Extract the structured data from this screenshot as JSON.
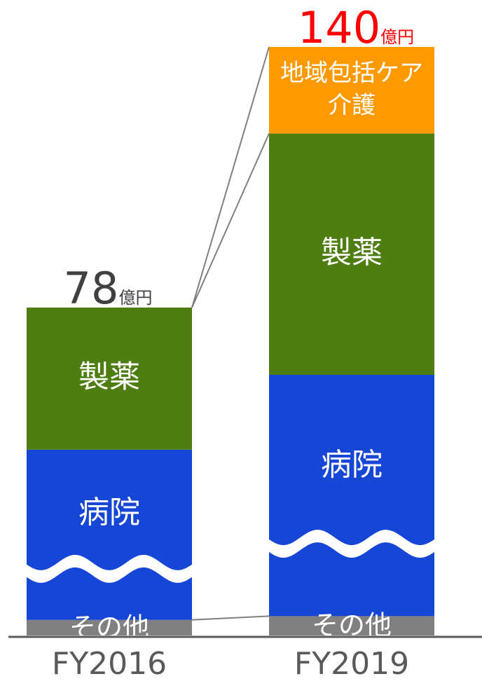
{
  "chart_data": {
    "type": "bar",
    "stacked": true,
    "axis_broken": true,
    "categories": [
      "FY2016",
      "FY2019"
    ],
    "totals": [
      {
        "number": "78",
        "unit": "億円",
        "color": "#404040"
      },
      {
        "number": "140",
        "unit": "億円",
        "color": "#ff0000"
      }
    ],
    "series": [
      {
        "name": "その他",
        "color": "#808080",
        "values": [
          3.7,
          4.6
        ]
      },
      {
        "name": "病院",
        "color": "#1646d6",
        "values": [
          40.5,
          57.4
        ]
      },
      {
        "name": "製薬",
        "color": "#4e7e12",
        "values": [
          33.8,
          57.4
        ]
      },
      {
        "name": "地域包括ケア介護",
        "label_lines": [
          "地域包括ケア",
          "介護"
        ],
        "color": "#ff9900",
        "values": [
          0,
          20.6
        ]
      }
    ]
  }
}
